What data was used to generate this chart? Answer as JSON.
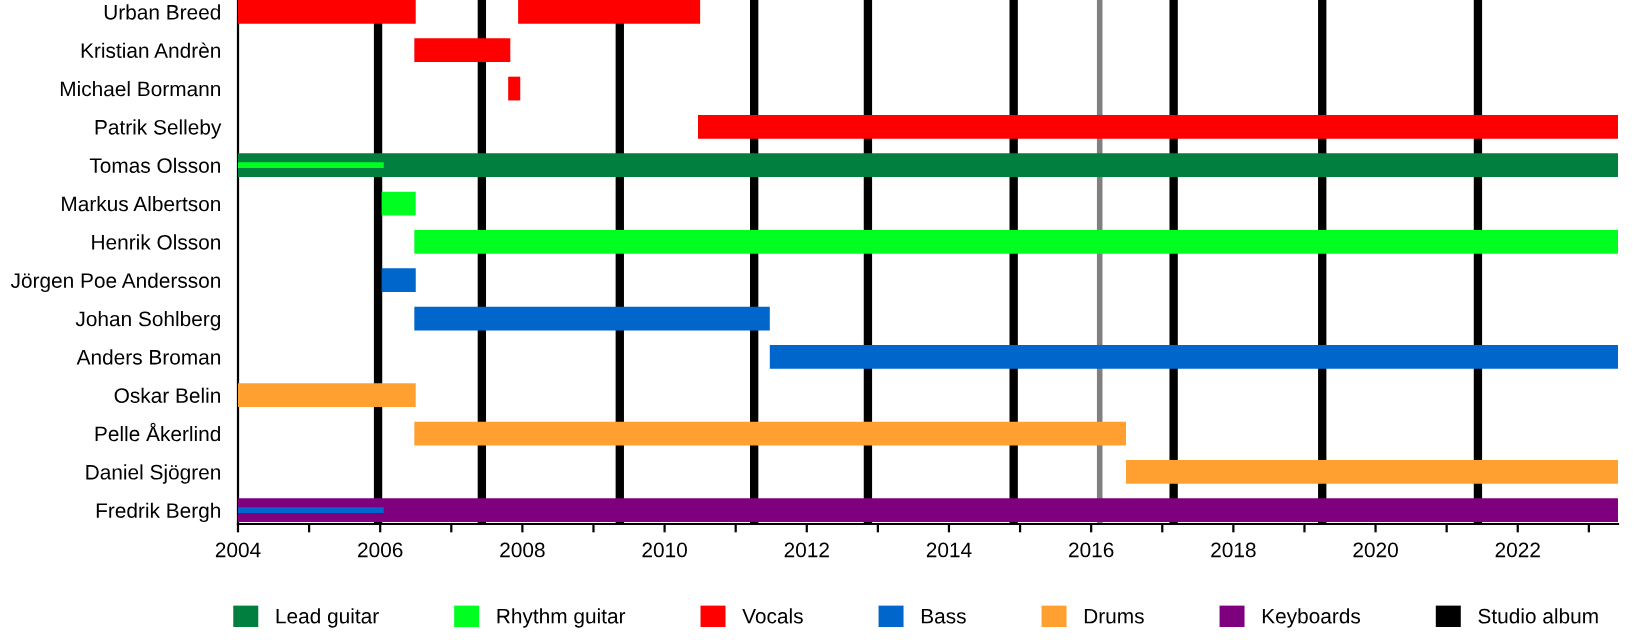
{
  "chart_data": {
    "type": "bar",
    "orientation": "horizontal",
    "categories": [
      "Urban Breed",
      "Kristian Andrèn",
      "Michael Bormann",
      "Patrik Selleby",
      "Tomas Olsson",
      "Markus Albertson",
      "Henrik Olsson",
      "Jörgen Poe Andersson",
      "Johan Sohlberg",
      "Anders Broman",
      "Oskar Belin",
      "Pelle Åkerlind",
      "Daniel Sjögren",
      "Fredrik Bergh"
    ],
    "series": [
      {
        "name": "Lead guitar",
        "color": "#007f3f",
        "base": [
          null,
          null,
          null,
          null,
          2004,
          null,
          null,
          null,
          null,
          null,
          null,
          null,
          null,
          null
        ],
        "values": [
          null,
          null,
          null,
          null,
          19.41,
          null,
          null,
          null,
          null,
          null,
          null,
          null,
          null,
          null
        ]
      },
      {
        "name": "Rhythm guitar",
        "color": "#00ff21",
        "base": [
          null,
          null,
          null,
          null,
          null,
          2006.02,
          2006.48,
          null,
          null,
          null,
          null,
          null,
          null,
          null
        ],
        "values": [
          null,
          null,
          null,
          null,
          null,
          0.48,
          16.93,
          null,
          null,
          null,
          null,
          null,
          null,
          null
        ]
      },
      {
        "name": "Vocals",
        "color": "#ff0000",
        "base": [
          2004,
          2006.48,
          2007.8,
          2010.47,
          null,
          null,
          null,
          null,
          null,
          null,
          null,
          null,
          null,
          null
        ],
        "values": [
          2.5,
          1.35,
          0.17,
          12.94,
          null,
          null,
          null,
          null,
          null,
          null,
          null,
          null,
          null,
          null
        ]
      },
      {
        "name": "Bass",
        "color": "#0066cc",
        "base": [
          null,
          null,
          null,
          null,
          null,
          null,
          null,
          2006.02,
          2006.48,
          2011.48,
          null,
          null,
          null,
          null
        ],
        "values": [
          null,
          null,
          null,
          null,
          null,
          null,
          null,
          0.48,
          5.0,
          11.93,
          null,
          null,
          null,
          null
        ]
      },
      {
        "name": "Drums",
        "color": "#ffa030",
        "base": [
          null,
          null,
          null,
          null,
          null,
          null,
          null,
          null,
          null,
          null,
          2004,
          2006.48,
          2016.49,
          null
        ],
        "values": [
          null,
          null,
          null,
          null,
          null,
          null,
          null,
          null,
          null,
          null,
          2.5,
          10.01,
          6.92,
          null
        ]
      },
      {
        "name": "Keyboards",
        "color": "#7f007f",
        "base": [
          null,
          null,
          null,
          null,
          null,
          null,
          null,
          null,
          null,
          null,
          null,
          null,
          null,
          2004
        ],
        "values": [
          null,
          null,
          null,
          null,
          null,
          null,
          null,
          null,
          null,
          null,
          null,
          null,
          null,
          19.41
        ]
      },
      {
        "color": "#ff0000",
        "base": [
          2007.94,
          null,
          null,
          null,
          null,
          null,
          null,
          null,
          null,
          null,
          null,
          null,
          null,
          null
        ],
        "values": [
          2.56,
          null,
          null,
          null,
          null,
          null,
          null,
          null,
          null,
          null,
          null,
          null,
          null,
          null
        ]
      },
      {
        "color": "#00ff21",
        "base": [
          null,
          null,
          null,
          null,
          2004,
          null,
          null,
          null,
          null,
          null,
          null,
          null,
          null,
          null
        ],
        "values": [
          null,
          null,
          null,
          null,
          2.05,
          null,
          null,
          null,
          null,
          null,
          null,
          null,
          null,
          null
        ]
      },
      {
        "color": "#0066cc",
        "base": [
          null,
          null,
          null,
          null,
          null,
          null,
          null,
          null,
          null,
          null,
          null,
          null,
          null,
          2004
        ],
        "values": [
          null,
          null,
          null,
          null,
          null,
          null,
          null,
          null,
          null,
          null,
          null,
          null,
          null,
          2.05
        ]
      }
    ],
    "ref_lines": [
      {
        "axis": "x",
        "value": 2005.97,
        "label": "Studio album",
        "color": "#000000"
      },
      {
        "axis": "x",
        "value": 2007.43,
        "label": null,
        "color": "#000000"
      },
      {
        "axis": "x",
        "value": 2009.37,
        "label": null,
        "color": "#000000"
      },
      {
        "axis": "x",
        "value": 2011.26,
        "label": null,
        "color": "#000000"
      },
      {
        "axis": "x",
        "value": 2012.86,
        "label": null,
        "color": "#000000"
      },
      {
        "axis": "x",
        "value": 2014.91,
        "label": null,
        "color": "#000000"
      },
      {
        "axis": "x",
        "value": 2016.12,
        "label": null,
        "color": "#808080"
      },
      {
        "axis": "x",
        "value": 2017.16,
        "label": null,
        "color": "#000000"
      },
      {
        "axis": "x",
        "value": 2019.25,
        "label": null,
        "color": "#000000"
      },
      {
        "axis": "x",
        "value": 2021.44,
        "label": null,
        "color": "#000000"
      }
    ],
    "xlim": [
      2004,
      2023.41
    ],
    "xticks": [
      2004,
      {
        "value": 2005,
        "label": null
      },
      2006,
      {
        "value": 2007,
        "label": null
      },
      2008,
      {
        "value": 2009,
        "label": null
      },
      2010,
      {
        "value": 2011,
        "label": null
      },
      2012,
      {
        "value": 2013,
        "label": null
      },
      2014,
      {
        "value": 2015,
        "label": null
      },
      2016,
      {
        "value": 2017,
        "label": null
      },
      2018,
      {
        "value": 2019,
        "label": null
      },
      2020,
      {
        "value": 2021,
        "label": null
      },
      2022,
      {
        "value": 2023,
        "label": null
      }
    ],
    "grid": false,
    "legend": "bottom"
  }
}
